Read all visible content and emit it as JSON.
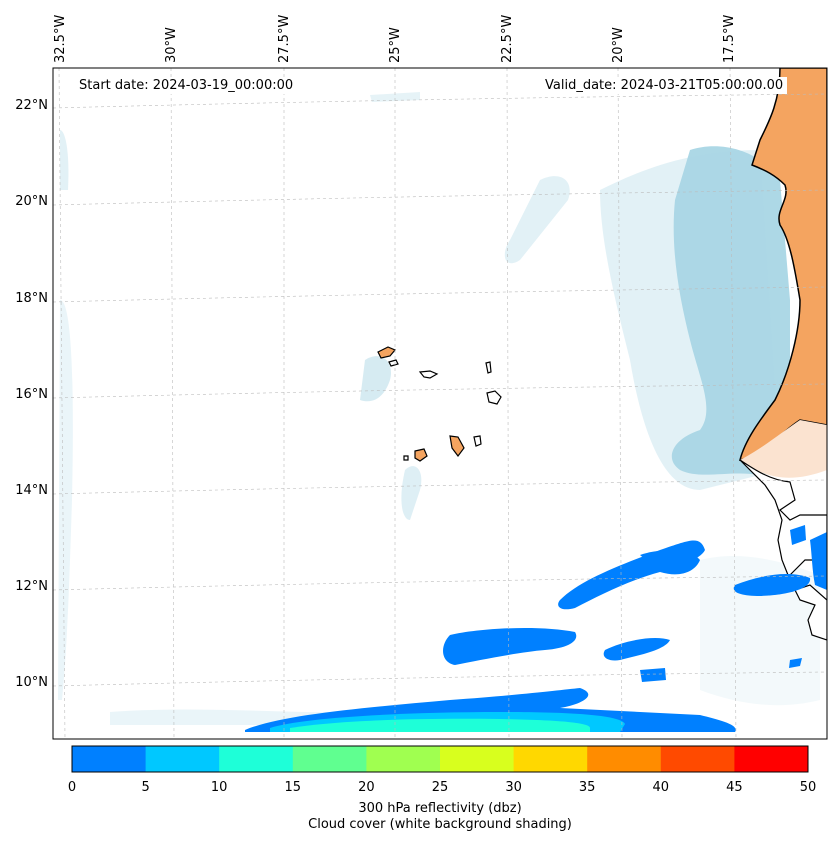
{
  "map": {
    "start_date": "Start date: 2024-03-19_00:00:00",
    "valid_date": "Valid_date: 2024-03-21T05:00:00.00",
    "lon_labels": [
      "32.5°W",
      "30°W",
      "27.5°W",
      "25°W",
      "22.5°W",
      "20°W",
      "17.5°W"
    ],
    "lat_labels": [
      "22°N",
      "20°N",
      "18°N",
      "16°N",
      "14°N",
      "12°N",
      "10°N"
    ]
  },
  "colorbar": {
    "ticks": [
      "0",
      "5",
      "10",
      "15",
      "20",
      "25",
      "30",
      "35",
      "40",
      "45",
      "50"
    ],
    "colors": [
      "#0080ff",
      "#00c8ff",
      "#1effd8",
      "#60ff90",
      "#a0ff50",
      "#d8ff1e",
      "#ffd800",
      "#ff8c00",
      "#ff4a00",
      "#ff0000"
    ],
    "label_line1": "300 hPa reflectivity (dbz)",
    "label_line2": "Cloud cover (white background shading)"
  }
}
